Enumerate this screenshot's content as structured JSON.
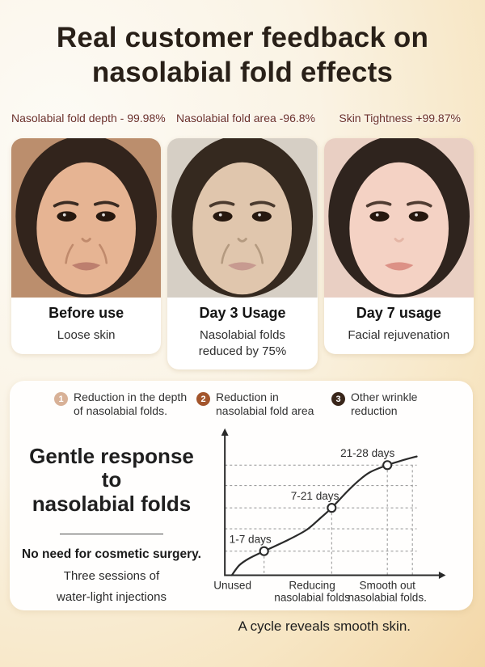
{
  "page": {
    "background_top_left": "#fdfbf6",
    "background_bottom_right": "#f1d09a"
  },
  "header": {
    "title_line1": "Real customer feedback on",
    "title_line2": "nasolabial fold effects",
    "title_color": "#292018"
  },
  "stats_color": "#6b3029",
  "cases": [
    {
      "stat": "Nasolabial fold depth - 99.98%",
      "title": "Before use",
      "desc": "Loose skin",
      "photo": {
        "bg": "#bb8e6d",
        "hair": "#32241c",
        "skin": "#e6b493",
        "brow": "#3a2b22",
        "lip": "#bd7f6e",
        "shade": "#c08a6c",
        "folds": true
      }
    },
    {
      "stat": "Nasolabial fold area -96.8%",
      "title": "Day 3 Usage",
      "desc": "Nasolabial folds reduced by 75%",
      "photo": {
        "bg": "#d6cfc5",
        "hair": "#35291f",
        "skin": "#e0c6ad",
        "brow": "#4a3a2e",
        "lip": "#c79a90",
        "shade": "#b49a80",
        "folds": true
      }
    },
    {
      "stat": "Skin Tightness +99.87%",
      "title": "Day 7 usage",
      "desc": "Facial rejuvenation",
      "photo": {
        "bg": "#e9cfc3",
        "hair": "#2f241e",
        "skin": "#f4d2c4",
        "brow": "#503c32",
        "lip": "#dc9186",
        "shade": "#e4b5a5",
        "folds": false
      }
    }
  ],
  "info_card": {
    "legend": [
      {
        "num": "1",
        "line1": "Reduction in the depth",
        "line2": "of nasolabial folds.",
        "color": "#d8b197"
      },
      {
        "num": "2",
        "line1": "Reduction in",
        "line2": "nasolabial fold area",
        "color": "#a3552c"
      },
      {
        "num": "3",
        "line1": "Other wrinkle",
        "line2": "reduction",
        "color": "#39261a"
      }
    ],
    "headline_line1": "Gentle response to",
    "headline_line2": "nasolabial folds",
    "note_bold": "No need for cosmetic surgery.",
    "note_line1": "Three sessions of",
    "note_line2": "water-light injections"
  },
  "chart_data": {
    "type": "line",
    "title": "",
    "categories": [
      "Unused",
      "Reducing nasolabial folds",
      "Smooth out nasolabial folds."
    ],
    "x_axis_labels": [
      {
        "lines": [
          "Unused"
        ],
        "nx": 3.5
      },
      {
        "lines": [
          "Reducing",
          "nasolabial folds"
        ],
        "nx": 40
      },
      {
        "lines": [
          "Smooth out",
          "nasolabial folds."
        ],
        "nx": 74.5
      }
    ],
    "points": [
      {
        "label": "1-7 days",
        "nx": 18,
        "ny": 19.5
      },
      {
        "label": "7-21 days",
        "nx": 49,
        "ny": 54.5
      },
      {
        "label": "21-28 days",
        "nx": 74.5,
        "ny": 89
      }
    ],
    "curve_nx_ny": [
      [
        3.2,
        0
      ],
      [
        6.6,
        8
      ],
      [
        11,
        13.5
      ],
      [
        18,
        19.5
      ],
      [
        27.8,
        27.5
      ],
      [
        37.3,
        36.5
      ],
      [
        43.7,
        46
      ],
      [
        49,
        54.5
      ],
      [
        56.3,
        68
      ],
      [
        61.7,
        77
      ],
      [
        66.8,
        83.5
      ],
      [
        74.5,
        89
      ],
      [
        82.6,
        93.5
      ],
      [
        88,
        96
      ]
    ],
    "gridlines_ny": [
      19.5,
      37.5,
      54.5,
      72.5,
      89
    ],
    "right_vertical_gridline_nx": 86,
    "gridline_extent_nx": 88,
    "grid": true,
    "legend_position": "none",
    "axis_color": "#2a2a2a",
    "grid_color": "#9e9e9e",
    "curve_color": "#2a2a2a",
    "marker_fill": "#ffffff",
    "label_color": "#2d2d2d"
  },
  "footer": {
    "caption": "A cycle reveals smooth skin."
  }
}
